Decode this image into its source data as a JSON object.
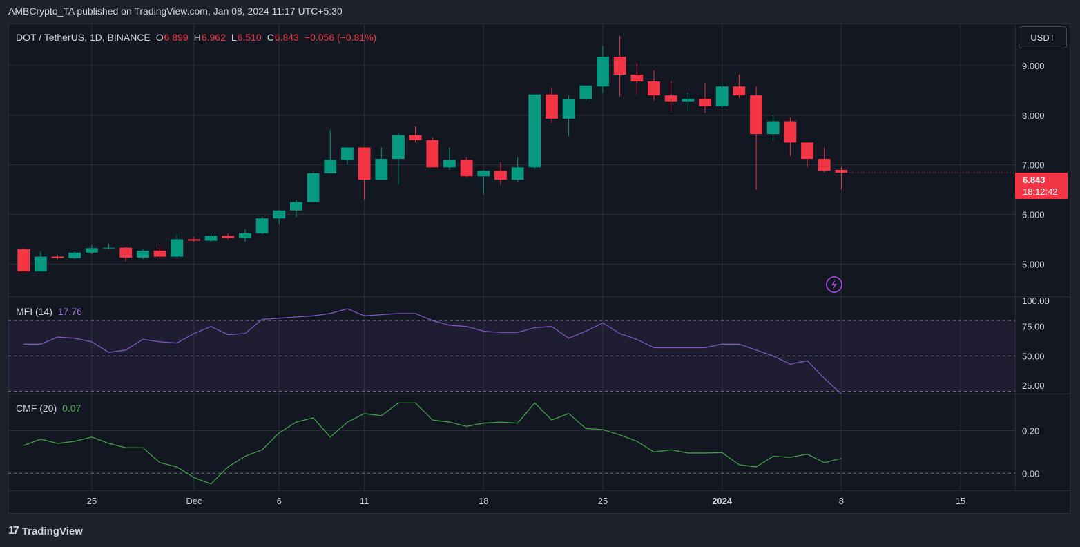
{
  "publisher_line": "AMBCrypto_TA published on TradingView.com, Jan 08, 2024 11:17 UTC+5:30",
  "brand": "TradingView",
  "brand_icon": "tradingview-logo-icon",
  "currency_button": "USDT",
  "symbol_line": "DOT / TetherUS, 1D, BINANCE",
  "ohlc": {
    "o_label": "O",
    "o": "6.899",
    "h_label": "H",
    "h": "6.962",
    "l_label": "L",
    "l": "6.510",
    "c_label": "C",
    "c": "6.843",
    "change": "−0.056 (−0.81%)"
  },
  "last_price_tag": {
    "price": "6.843",
    "countdown": "18:12:42"
  },
  "colors": {
    "up": "#089981",
    "down": "#f23645",
    "mfi": "#7e57c2",
    "cmf": "#43a047",
    "bg": "#131722",
    "grid": "#2a2e39"
  },
  "chart_data": [
    {
      "type": "candlestick",
      "panel": "price",
      "ylim": [
        4.35,
        9.85
      ],
      "yticks": [
        5.0,
        6.0,
        7.0,
        8.0,
        9.0
      ],
      "ytick_labels": [
        "5.000",
        "6.000",
        "7.000",
        "8.000",
        "9.000"
      ],
      "x_tick_labels": [
        {
          "label": "25",
          "index": 4,
          "bold": false
        },
        {
          "label": "Dec",
          "index": 10,
          "bold": false
        },
        {
          "label": "6",
          "index": 15,
          "bold": false
        },
        {
          "label": "11",
          "index": 20,
          "bold": false
        },
        {
          "label": "18",
          "index": 27,
          "bold": false
        },
        {
          "label": "25",
          "index": 34,
          "bold": false
        },
        {
          "label": "2024",
          "index": 41,
          "bold": true
        },
        {
          "label": "8",
          "index": 48,
          "bold": false
        },
        {
          "label": "15",
          "index": 55,
          "bold": false
        }
      ],
      "x_range": [
        -0.9,
        58.2
      ],
      "candles": [
        {
          "o": 5.3,
          "h": 5.32,
          "l": 4.85,
          "c": 4.85
        },
        {
          "o": 4.85,
          "h": 5.25,
          "l": 4.85,
          "c": 5.15
        },
        {
          "o": 5.15,
          "h": 5.18,
          "l": 5.1,
          "c": 5.12
        },
        {
          "o": 5.12,
          "h": 5.25,
          "l": 5.1,
          "c": 5.23
        },
        {
          "o": 5.23,
          "h": 5.38,
          "l": 5.2,
          "c": 5.32
        },
        {
          "o": 5.32,
          "h": 5.4,
          "l": 5.3,
          "c": 5.33
        },
        {
          "o": 5.33,
          "h": 5.35,
          "l": 5.05,
          "c": 5.13
        },
        {
          "o": 5.13,
          "h": 5.3,
          "l": 5.1,
          "c": 5.27
        },
        {
          "o": 5.27,
          "h": 5.4,
          "l": 5.1,
          "c": 5.15
        },
        {
          "o": 5.15,
          "h": 5.6,
          "l": 5.12,
          "c": 5.5
        },
        {
          "o": 5.5,
          "h": 5.55,
          "l": 5.45,
          "c": 5.47
        },
        {
          "o": 5.47,
          "h": 5.62,
          "l": 5.45,
          "c": 5.57
        },
        {
          "o": 5.57,
          "h": 5.62,
          "l": 5.5,
          "c": 5.53
        },
        {
          "o": 5.53,
          "h": 5.7,
          "l": 5.45,
          "c": 5.62
        },
        {
          "o": 5.62,
          "h": 5.95,
          "l": 5.6,
          "c": 5.92
        },
        {
          "o": 5.92,
          "h": 6.1,
          "l": 5.8,
          "c": 6.08
        },
        {
          "o": 6.08,
          "h": 6.3,
          "l": 5.95,
          "c": 6.25
        },
        {
          "o": 6.25,
          "h": 6.85,
          "l": 6.25,
          "c": 6.83
        },
        {
          "o": 6.83,
          "h": 7.7,
          "l": 6.82,
          "c": 7.1
        },
        {
          "o": 7.1,
          "h": 7.35,
          "l": 7.0,
          "c": 7.35
        },
        {
          "o": 7.35,
          "h": 7.35,
          "l": 6.3,
          "c": 6.7
        },
        {
          "o": 6.7,
          "h": 7.35,
          "l": 6.7,
          "c": 7.12
        },
        {
          "o": 7.12,
          "h": 7.65,
          "l": 6.6,
          "c": 7.6
        },
        {
          "o": 7.6,
          "h": 7.78,
          "l": 7.45,
          "c": 7.5
        },
        {
          "o": 7.5,
          "h": 7.55,
          "l": 6.95,
          "c": 6.95
        },
        {
          "o": 6.95,
          "h": 7.35,
          "l": 6.9,
          "c": 7.1
        },
        {
          "o": 7.1,
          "h": 7.15,
          "l": 6.75,
          "c": 6.77
        },
        {
          "o": 6.77,
          "h": 6.9,
          "l": 6.4,
          "c": 6.88
        },
        {
          "o": 6.88,
          "h": 7.05,
          "l": 6.6,
          "c": 6.7
        },
        {
          "o": 6.7,
          "h": 7.15,
          "l": 6.65,
          "c": 6.95
        },
        {
          "o": 6.95,
          "h": 8.4,
          "l": 6.92,
          "c": 8.42
        },
        {
          "o": 8.42,
          "h": 8.55,
          "l": 7.85,
          "c": 7.93
        },
        {
          "o": 7.93,
          "h": 8.4,
          "l": 7.58,
          "c": 8.32
        },
        {
          "o": 8.32,
          "h": 8.6,
          "l": 8.3,
          "c": 8.6
        },
        {
          "o": 8.58,
          "h": 9.4,
          "l": 8.45,
          "c": 9.18
        },
        {
          "o": 9.18,
          "h": 9.6,
          "l": 8.38,
          "c": 8.82
        },
        {
          "o": 8.82,
          "h": 9.05,
          "l": 8.42,
          "c": 8.68
        },
        {
          "o": 8.68,
          "h": 8.9,
          "l": 8.3,
          "c": 8.4
        },
        {
          "o": 8.4,
          "h": 8.68,
          "l": 8.08,
          "c": 8.28
        },
        {
          "o": 8.28,
          "h": 8.45,
          "l": 8.1,
          "c": 8.33
        },
        {
          "o": 8.33,
          "h": 8.65,
          "l": 8.05,
          "c": 8.18
        },
        {
          "o": 8.18,
          "h": 8.65,
          "l": 8.15,
          "c": 8.58
        },
        {
          "o": 8.58,
          "h": 8.82,
          "l": 8.35,
          "c": 8.4
        },
        {
          "o": 8.4,
          "h": 8.58,
          "l": 6.5,
          "c": 7.62
        },
        {
          "o": 7.62,
          "h": 8.0,
          "l": 7.48,
          "c": 7.88
        },
        {
          "o": 7.88,
          "h": 7.95,
          "l": 7.18,
          "c": 7.45
        },
        {
          "o": 7.45,
          "h": 7.45,
          "l": 6.95,
          "c": 7.12
        },
        {
          "o": 7.12,
          "h": 7.35,
          "l": 6.85,
          "c": 6.88
        },
        {
          "o": 6.899,
          "h": 6.962,
          "l": 6.51,
          "c": 6.843
        }
      ]
    },
    {
      "type": "line",
      "panel": "MFI",
      "title": "MFI (14)",
      "last_value": "17.76",
      "ylim": [
        18,
        100
      ],
      "yticks": [
        25,
        50,
        75,
        100
      ],
      "ytick_labels": [
        "25.00",
        "50.00",
        "75.00",
        "100.00"
      ],
      "bands": [
        20,
        80
      ],
      "midline": 50,
      "values": [
        60,
        60,
        66,
        65,
        62,
        53,
        55,
        64,
        62,
        61,
        69,
        75,
        68,
        69,
        81,
        82,
        83,
        84,
        86,
        90,
        84,
        85,
        86,
        86,
        80,
        76,
        75,
        71,
        70,
        70,
        74,
        75,
        65,
        71,
        78,
        69,
        64,
        57,
        57,
        57,
        57,
        60,
        60,
        55,
        50,
        43,
        46,
        31,
        17.76
      ]
    },
    {
      "type": "line",
      "panel": "CMF",
      "title": "CMF (20)",
      "last_value": "0.07",
      "ylim": [
        -0.08,
        0.37
      ],
      "yticks": [
        0.0,
        0.2
      ],
      "ytick_labels": [
        "0.00",
        "0.20"
      ],
      "zero_line": 0,
      "values": [
        0.13,
        0.16,
        0.14,
        0.15,
        0.17,
        0.14,
        0.12,
        0.12,
        0.05,
        0.03,
        -0.02,
        -0.05,
        0.03,
        0.08,
        0.11,
        0.19,
        0.24,
        0.26,
        0.17,
        0.24,
        0.28,
        0.27,
        0.33,
        0.33,
        0.25,
        0.24,
        0.22,
        0.235,
        0.24,
        0.235,
        0.33,
        0.25,
        0.28,
        0.21,
        0.205,
        0.18,
        0.15,
        0.1,
        0.11,
        0.095,
        0.095,
        0.097,
        0.04,
        0.03,
        0.08,
        0.075,
        0.09,
        0.05,
        0.07
      ]
    }
  ]
}
